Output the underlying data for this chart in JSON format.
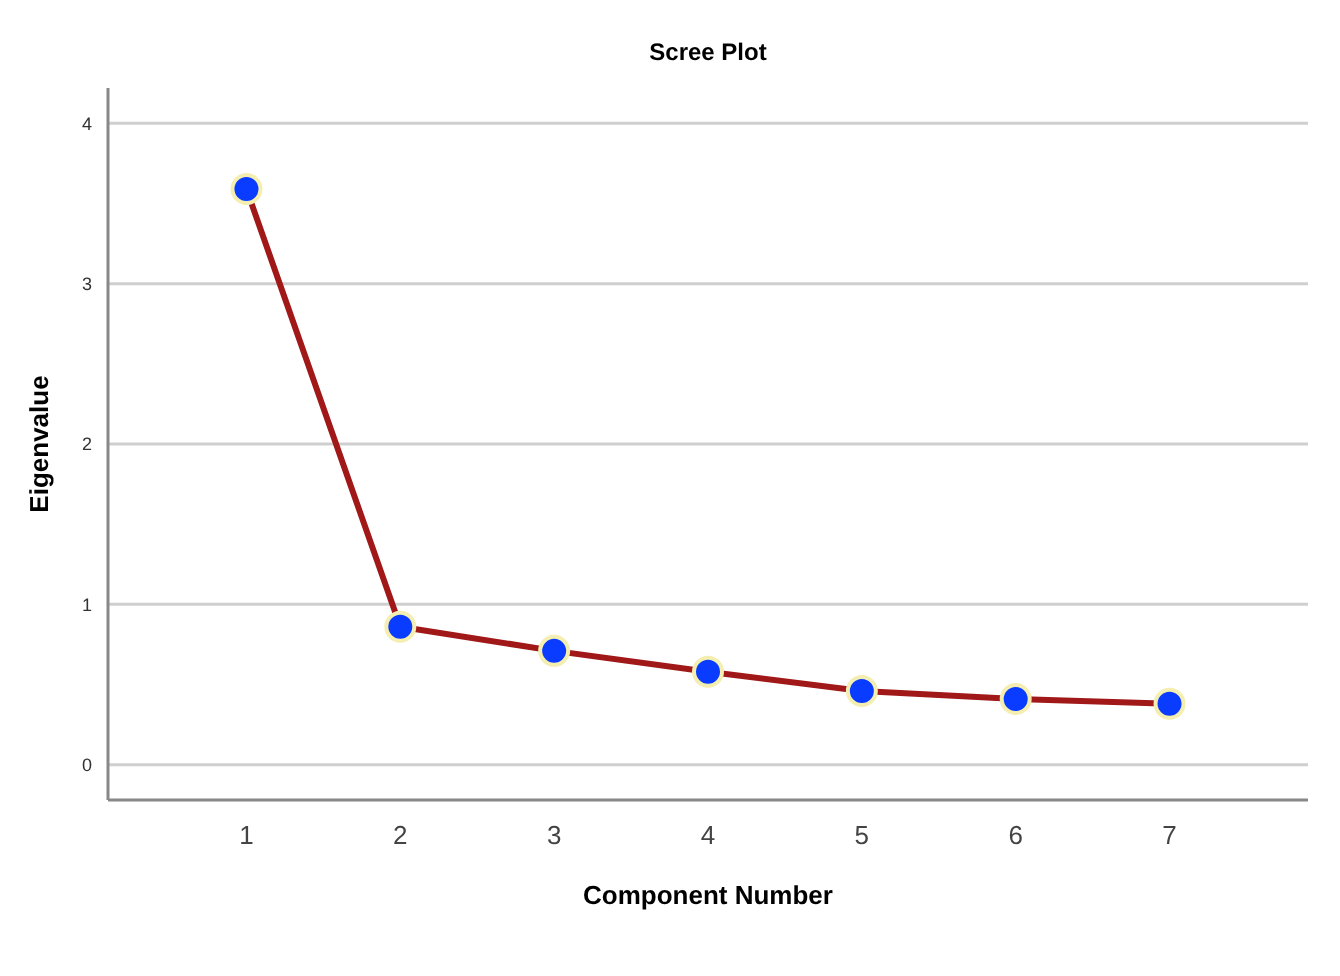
{
  "chart_data": {
    "type": "line",
    "title": "Scree Plot",
    "xlabel": "Component Number",
    "ylabel": "Eigenvalue",
    "categories": [
      "1",
      "2",
      "3",
      "4",
      "5",
      "6",
      "7"
    ],
    "series": [
      {
        "color": "#a01818",
        "values": [
          3.59,
          0.86,
          0.71,
          0.58,
          0.46,
          0.41,
          0.38
        ]
      }
    ],
    "ylim": [
      -0.22,
      4.22
    ],
    "yticks": [
      0,
      1,
      2,
      3,
      4
    ],
    "grid": "y",
    "marker": "circle",
    "line_style": "solid"
  }
}
